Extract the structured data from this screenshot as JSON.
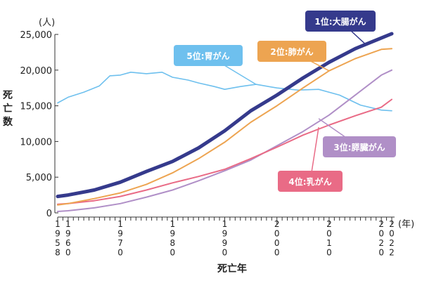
{
  "chart_data": {
    "type": "line",
    "ylabel": "死亡数",
    "yunit": "(人)",
    "xlabel": "死亡年",
    "xunit": "(年)",
    "ylim": [
      0,
      25000
    ],
    "xlim": [
      1958,
      2022
    ],
    "yticks": [
      0,
      5000,
      10000,
      15000,
      20000,
      25000
    ],
    "ytick_labels": [
      "0",
      "5,000",
      "10,000",
      "15,000",
      "20,000",
      "25,000"
    ],
    "xticks": [
      1958,
      1960,
      1970,
      1980,
      1990,
      2000,
      2010,
      2020,
      2022
    ],
    "grid": false,
    "series": [
      {
        "name": "1位:大腸がん",
        "color": "#353a8c",
        "x": [
          1958,
          1960,
          1965,
          1970,
          1975,
          1980,
          1985,
          1990,
          1995,
          2000,
          2005,
          2010,
          2015,
          2020,
          2022
        ],
        "y": [
          2300,
          2500,
          3200,
          4300,
          5800,
          7200,
          9100,
          11500,
          14300,
          16500,
          18900,
          21100,
          23000,
          24500,
          25100
        ]
      },
      {
        "name": "2位:肺がん",
        "color": "#eda451",
        "x": [
          1958,
          1960,
          1965,
          1970,
          1975,
          1980,
          1985,
          1990,
          1995,
          2000,
          2005,
          2010,
          2015,
          2020,
          2022
        ],
        "y": [
          1100,
          1300,
          2000,
          2800,
          4000,
          5600,
          7600,
          9900,
          12700,
          15000,
          17500,
          19900,
          21600,
          22900,
          23000
        ]
      },
      {
        "name": "3位:膵臓がん",
        "color": "#b08fc7",
        "x": [
          1958,
          1960,
          1965,
          1970,
          1975,
          1980,
          1985,
          1990,
          1995,
          2000,
          2005,
          2010,
          2015,
          2020,
          2022
        ],
        "y": [
          200,
          300,
          700,
          1300,
          2200,
          3200,
          4500,
          5900,
          7400,
          9400,
          11400,
          13700,
          16500,
          19300,
          20000
        ]
      },
      {
        "name": "4位:乳がん",
        "color": "#e96b86",
        "x": [
          1958,
          1960,
          1965,
          1970,
          1975,
          1980,
          1985,
          1990,
          1995,
          2000,
          2005,
          2010,
          2015,
          2020,
          2022
        ],
        "y": [
          1200,
          1300,
          1700,
          2300,
          3200,
          4200,
          5100,
          6100,
          7600,
          9200,
          10900,
          12300,
          13600,
          14800,
          15900
        ]
      },
      {
        "name": "5位:胃がん",
        "color": "#6ec0ee",
        "x": [
          1958,
          1960,
          1963,
          1966,
          1968,
          1970,
          1972,
          1975,
          1978,
          1980,
          1983,
          1985,
          1988,
          1990,
          1993,
          1996,
          2000,
          2004,
          2008,
          2012,
          2016,
          2020,
          2022
        ],
        "y": [
          15400,
          16200,
          16900,
          17800,
          19200,
          19300,
          19700,
          19500,
          19700,
          19000,
          18600,
          18200,
          17700,
          17300,
          17700,
          18000,
          17500,
          17200,
          17300,
          16500,
          15100,
          14400,
          14300
        ]
      }
    ]
  }
}
